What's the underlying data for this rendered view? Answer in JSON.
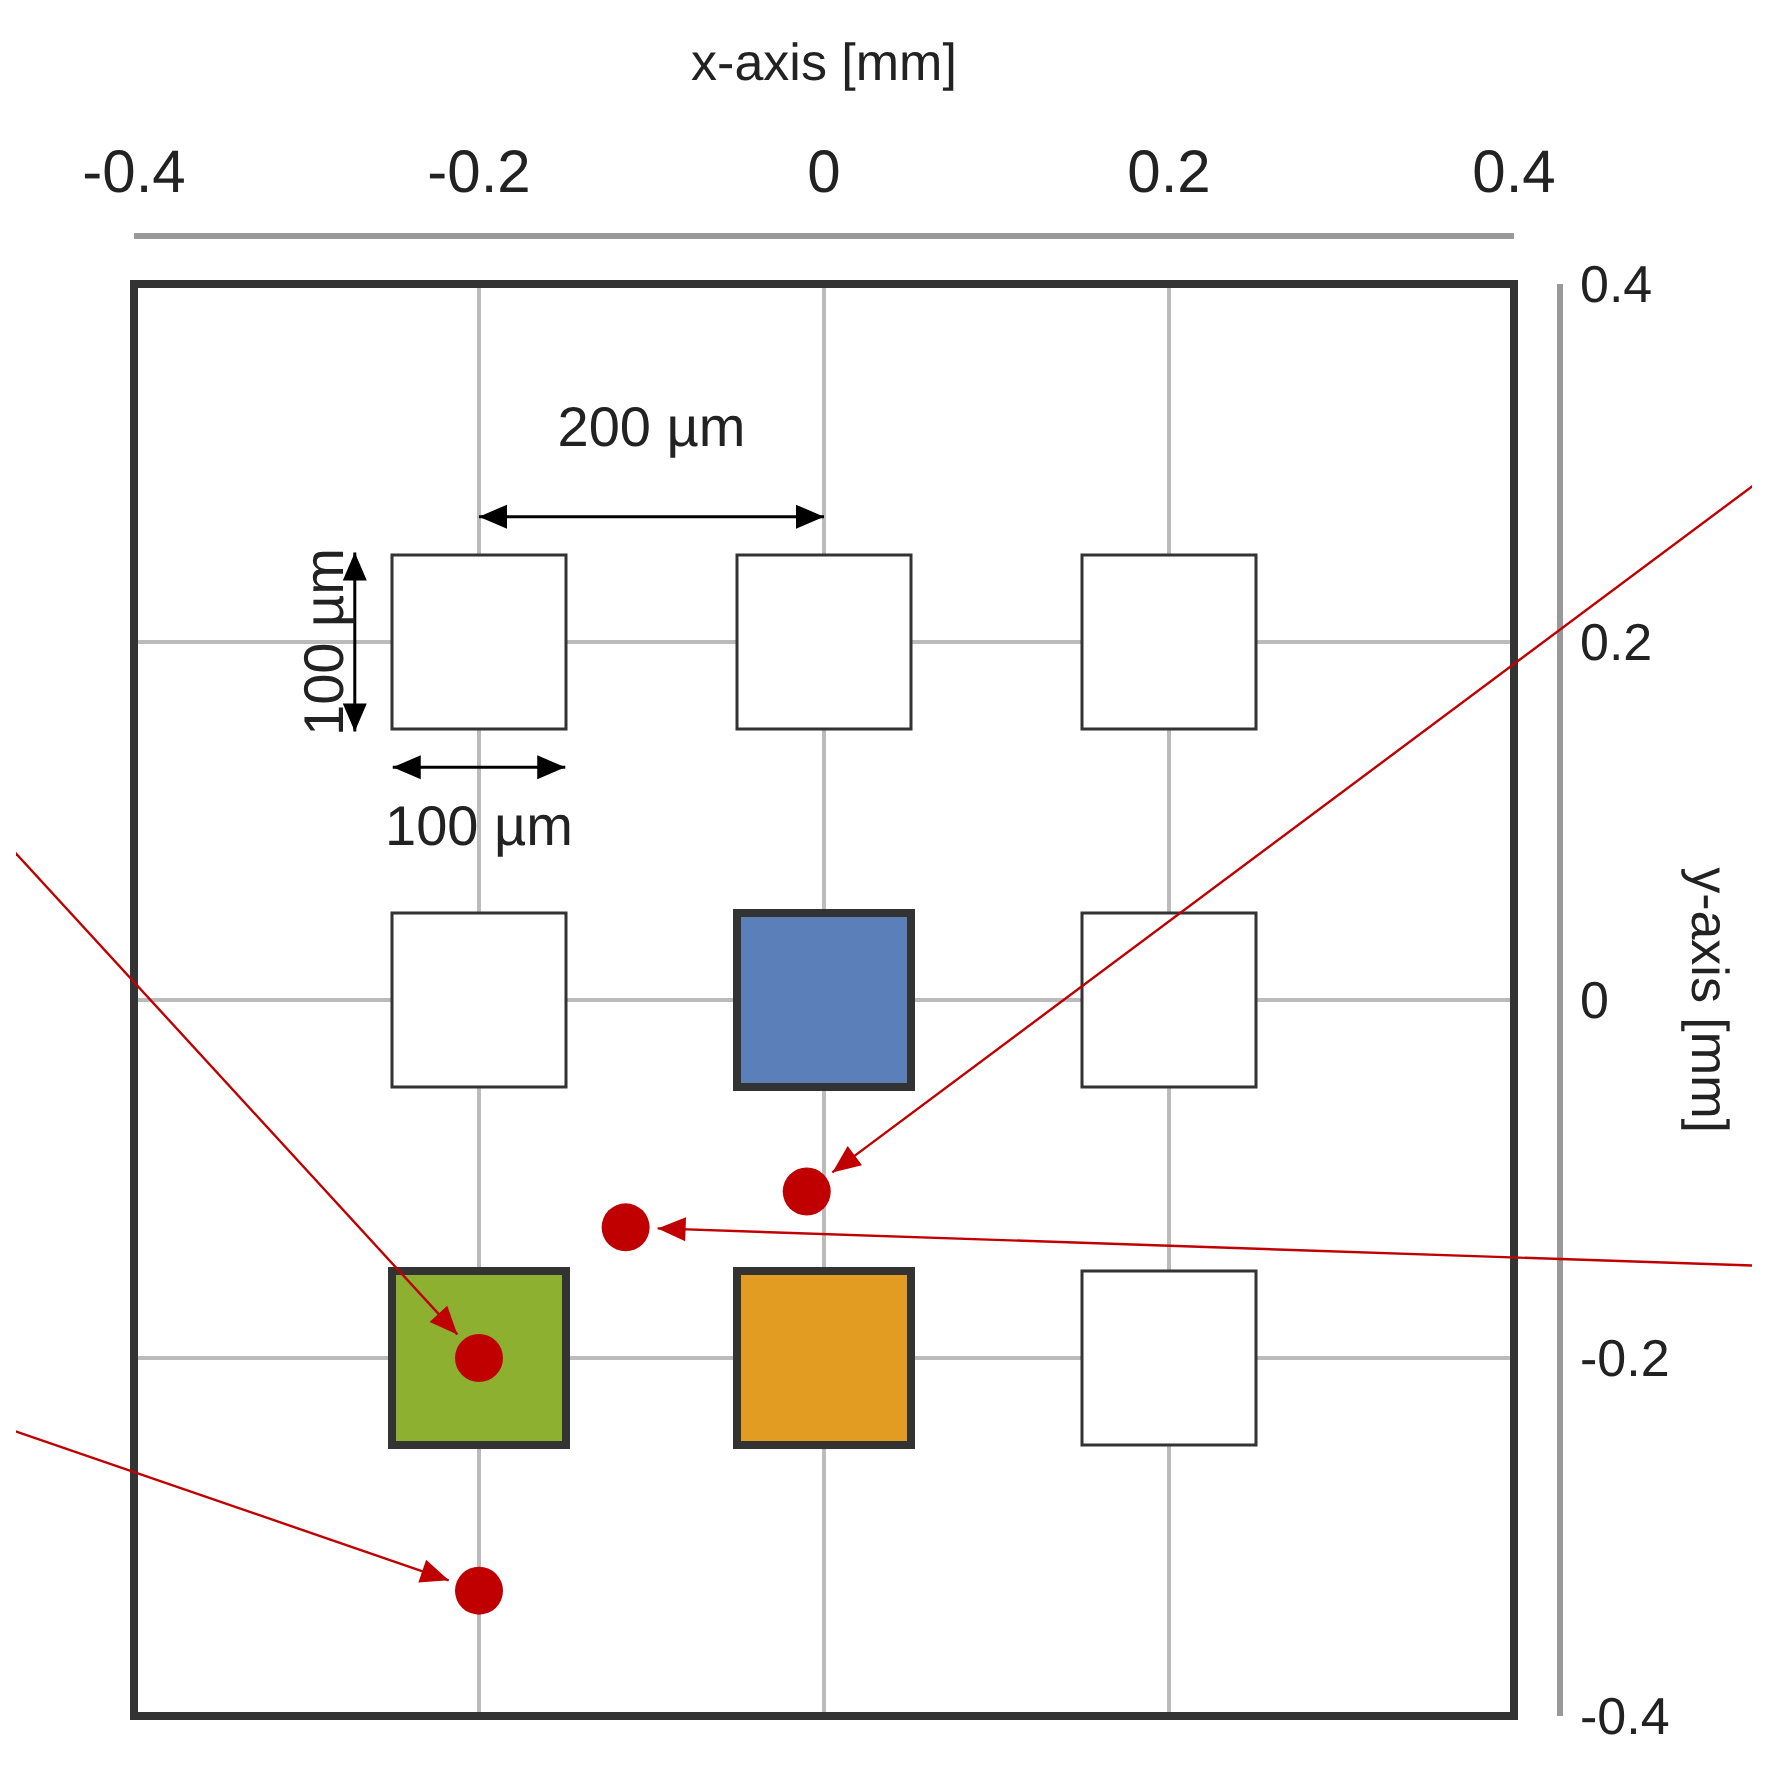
{
  "chart_data": {
    "type": "scatter",
    "xlabel": "x-axis [mm]",
    "ylabel": "y-axis [mm]",
    "xlim": [
      -0.4,
      0.4
    ],
    "ylim": [
      -0.4,
      0.4
    ],
    "xticks": [
      -0.4,
      -0.2,
      0,
      0.2,
      0.4
    ],
    "yticks": [
      -0.4,
      -0.2,
      0,
      0.2,
      0.4
    ],
    "grid": true,
    "series": [
      {
        "marker": "circle",
        "color": "#c00000",
        "x": [
          -0.2,
          -0.2,
          -0.115,
          -0.01
        ],
        "values": [
          -0.2,
          -0.33,
          -0.127,
          -0.107
        ]
      }
    ],
    "annotations": [
      "200 µm",
      "100 µm",
      "100 µm"
    ]
  }
}
